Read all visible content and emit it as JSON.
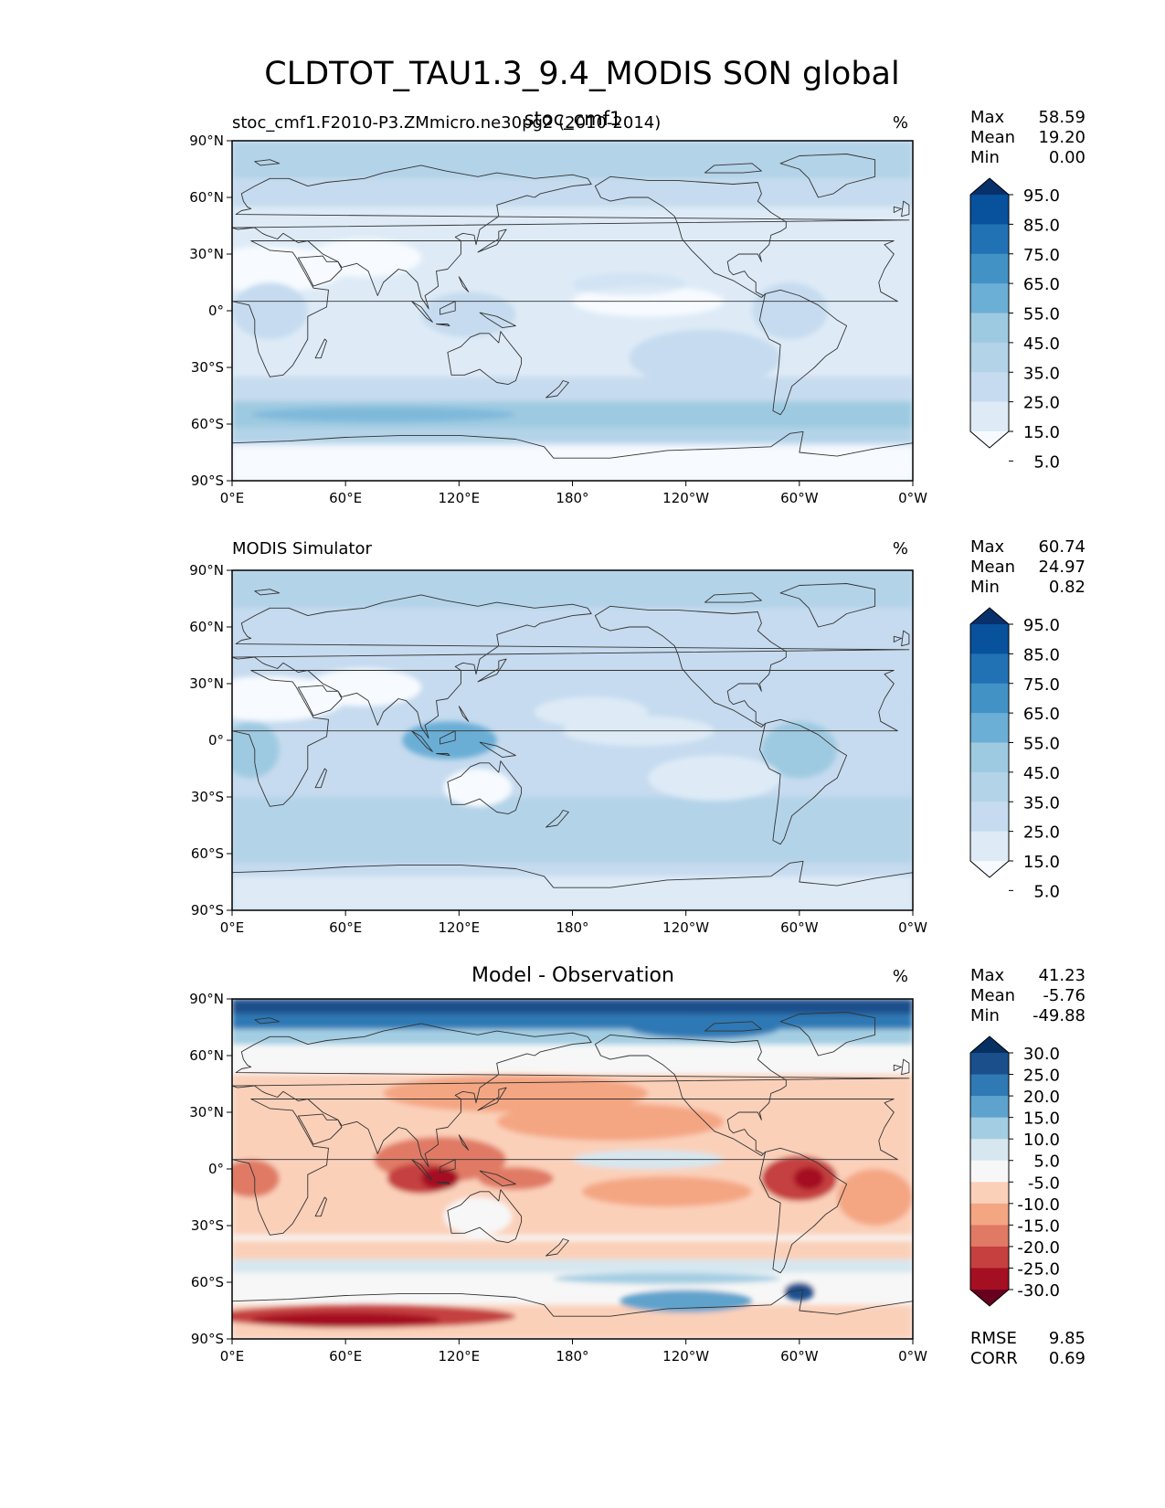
{
  "title": "CLDTOT_TAU1.3_9.4_MODIS SON global",
  "colors": {
    "blues": [
      "#f7fbff",
      "#deebf7",
      "#c6dbef",
      "#b3d3e8",
      "#9ecae1",
      "#6baed6",
      "#4292c6",
      "#2171b5",
      "#08519c",
      "#08306b"
    ],
    "diff": [
      "#67001f",
      "#a50f22",
      "#c5403f",
      "#e07a65",
      "#f4a683",
      "#fbd0b9",
      "#f7f7f7",
      "#d6e7f0",
      "#a3cde2",
      "#5ea3cd",
      "#2f79b5",
      "#1a4f8c",
      "#053061"
    ],
    "coast": "#333333"
  },
  "chart_data": [
    {
      "type": "heatmap",
      "title": "",
      "left_label": "stoc_cmf1.F2010-P3.ZMmicro.ne30pg2 (2010-2014)",
      "center_label": "stoc_cmf1",
      "units": "%",
      "stats": [
        {
          "label": "Max",
          "value": "58.59"
        },
        {
          "label": "Mean",
          "value": "19.20"
        },
        {
          "label": "Min",
          "value": "0.00"
        }
      ],
      "colorbar": {
        "ticks": [
          "95.0",
          "85.0",
          "75.0",
          "65.0",
          "55.0",
          "45.0",
          "35.0",
          "25.0",
          "15.0",
          "5.0"
        ]
      },
      "xticks": [
        "0°E",
        "60°E",
        "120°E",
        "180°",
        "120°W",
        "60°W",
        "0°W"
      ],
      "yticks": [
        "90°N",
        "60°N",
        "30°N",
        "0°",
        "30°S",
        "60°S",
        "90°S"
      ],
      "xlim": [
        0,
        360
      ],
      "ylim": [
        -90,
        90
      ],
      "footer": []
    },
    {
      "type": "heatmap",
      "title": "",
      "left_label": "MODIS Simulator",
      "center_label": "",
      "units": "%",
      "stats": [
        {
          "label": "Max",
          "value": "60.74"
        },
        {
          "label": "Mean",
          "value": "24.97"
        },
        {
          "label": "Min",
          "value": "0.82"
        }
      ],
      "colorbar": {
        "ticks": [
          "95.0",
          "85.0",
          "75.0",
          "65.0",
          "55.0",
          "45.0",
          "35.0",
          "25.0",
          "15.0",
          "5.0"
        ]
      },
      "xticks": [
        "0°E",
        "60°E",
        "120°E",
        "180°",
        "120°W",
        "60°W",
        "0°W"
      ],
      "yticks": [
        "90°N",
        "60°N",
        "30°N",
        "0°",
        "30°S",
        "60°S",
        "90°S"
      ],
      "xlim": [
        0,
        360
      ],
      "ylim": [
        -90,
        90
      ],
      "footer": []
    },
    {
      "type": "heatmap",
      "title": "Model - Observation",
      "left_label": "",
      "center_label": "",
      "units": "%",
      "stats": [
        {
          "label": "Max",
          "value": "41.23"
        },
        {
          "label": "Mean",
          "value": "-5.76"
        },
        {
          "label": "Min",
          "value": "-49.88"
        }
      ],
      "colorbar": {
        "ticks": [
          "30.0",
          "25.0",
          "20.0",
          "15.0",
          "10.0",
          "5.0",
          "-5.0",
          "-10.0",
          "-15.0",
          "-20.0",
          "-25.0",
          "-30.0"
        ]
      },
      "xticks": [
        "0°E",
        "60°E",
        "120°E",
        "180°",
        "120°W",
        "60°W",
        "0°W"
      ],
      "yticks": [
        "90°N",
        "60°N",
        "30°N",
        "0°",
        "30°S",
        "60°S",
        "90°S"
      ],
      "xlim": [
        0,
        360
      ],
      "ylim": [
        -90,
        90
      ],
      "footer": [
        {
          "label": "RMSE",
          "value": "9.85"
        },
        {
          "label": "CORR",
          "value": "0.69"
        }
      ]
    }
  ]
}
